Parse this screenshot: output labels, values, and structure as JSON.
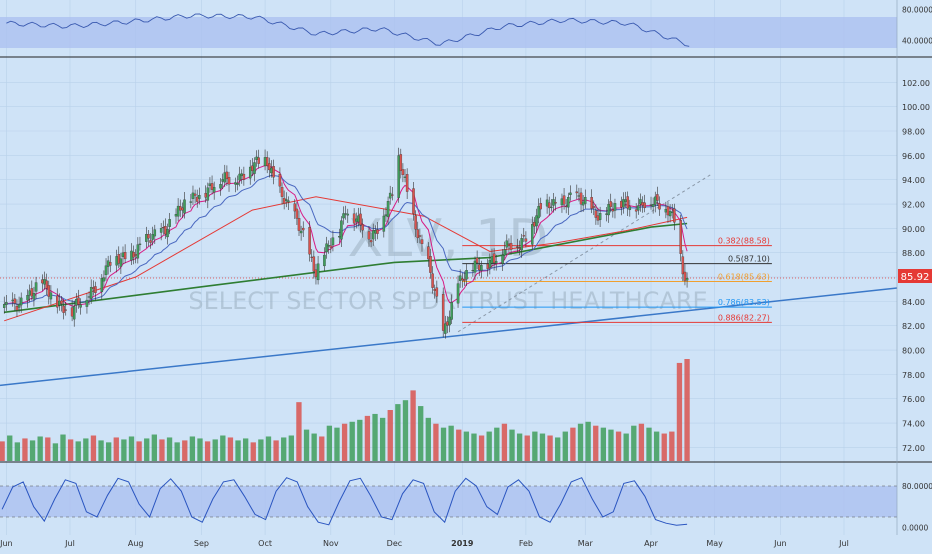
{
  "watermark": {
    "symbol": "XLV, 1D",
    "name": "SELECT SECTOR SPDR TRUST HEALTHCARE"
  },
  "colors": {
    "background": "#cfe3f7",
    "up": "#3f9e5c",
    "down": "#d9534f",
    "sma_long": "#2e7d32",
    "sma_mid": "#e53935",
    "ema_fast": "#d81b84",
    "ema_slow": "#4a68c0",
    "trend": "#3a78c8",
    "price_line": "#e53935"
  },
  "last_price": "85.92",
  "chart_data": [
    {
      "type": "line",
      "panel": "rsi",
      "y_ticks": [
        "80.0000",
        "40.0000"
      ],
      "band": [
        30,
        70
      ],
      "x": [
        "2018-06-01",
        "2018-07-01",
        "2018-08-01",
        "2018-09-01",
        "2018-10-01",
        "2018-11-01",
        "2018-12-01",
        "2019-01-02",
        "2019-02-01",
        "2019-03-01",
        "2019-04-01",
        "2019-04-19"
      ],
      "series": [
        {
          "values": [
            62,
            58,
            64,
            72,
            70,
            48,
            55,
            35,
            58,
            66,
            62,
            34
          ]
        }
      ]
    },
    {
      "type": "candlestick",
      "panel": "price",
      "x_ticks": [
        "Jun",
        "Jul",
        "Aug",
        "Sep",
        "Oct",
        "Nov",
        "Dec",
        "2019",
        "Feb",
        "Mar",
        "Apr",
        "May",
        "Jun",
        "Jul"
      ],
      "y_ticks": [
        "102.00",
        "100.00",
        "98.00",
        "96.00",
        "94.00",
        "92.00",
        "90.00",
        "88.00",
        "86.00",
        "84.00",
        "82.00",
        "80.00",
        "78.00",
        "76.00",
        "74.00",
        "72.00"
      ],
      "ylim": [
        70.8,
        104.0
      ],
      "x_range": [
        "2018-05-29",
        "2019-07-26"
      ],
      "ohlc_path": [
        [
          "2018-05-31",
          83.2
        ],
        [
          "2018-06-18",
          85.3
        ],
        [
          "2018-07-02",
          83.0
        ],
        [
          "2018-07-20",
          87.0
        ],
        [
          "2018-08-08",
          89.0
        ],
        [
          "2018-08-31",
          93.0
        ],
        [
          "2018-09-20",
          94.5
        ],
        [
          "2018-10-02",
          95.6
        ],
        [
          "2018-10-11",
          92.0
        ],
        [
          "2018-10-19",
          89.5
        ],
        [
          "2018-10-25",
          86.5
        ],
        [
          "2018-11-05",
          89.8
        ],
        [
          "2018-11-08",
          91.9
        ],
        [
          "2018-11-20",
          89.0
        ],
        [
          "2018-11-30",
          93.0
        ],
        [
          "2018-12-03",
          95.5
        ],
        [
          "2018-12-10",
          91.0
        ],
        [
          "2018-12-17",
          87.0
        ],
        [
          "2018-12-24",
          81.2
        ],
        [
          "2018-12-31",
          85.7
        ],
        [
          "2019-01-15",
          87.5
        ],
        [
          "2019-01-29",
          88.8
        ],
        [
          "2019-02-08",
          91.5
        ],
        [
          "2019-02-22",
          92.6
        ],
        [
          "2019-03-08",
          91.2
        ],
        [
          "2019-03-22",
          92.2
        ],
        [
          "2019-04-09",
          91.8
        ],
        [
          "2019-04-12",
          91.0
        ],
        [
          "2019-04-16",
          86.5
        ],
        [
          "2019-04-17",
          85.6
        ],
        [
          "2019-04-18",
          85.9
        ]
      ],
      "sma_long": [
        [
          "2018-05-31",
          83.1
        ],
        [
          "2018-09-01",
          85.2
        ],
        [
          "2018-12-01",
          87.2
        ],
        [
          "2019-01-15",
          87.6
        ],
        [
          "2019-04-01",
          90.1
        ],
        [
          "2019-04-18",
          90.4
        ]
      ],
      "sma_mid": [
        [
          "2018-05-31",
          82.4
        ],
        [
          "2018-08-01",
          86.0
        ],
        [
          "2018-09-25",
          91.5
        ],
        [
          "2018-10-25",
          92.6
        ],
        [
          "2018-12-15",
          91.0
        ],
        [
          "2019-01-15",
          88.1
        ],
        [
          "2019-02-15",
          88.8
        ],
        [
          "2019-03-20",
          89.8
        ],
        [
          "2019-04-18",
          90.9
        ]
      ],
      "fib_levels": [
        {
          "label": "0.382(88.58)",
          "value": 88.58,
          "color": "#e53935"
        },
        {
          "label": "0.5(87.10)",
          "value": 87.1,
          "color": "#333333"
        },
        {
          "label": "0.618(85.63)",
          "value": 85.63,
          "color": "#f0a030"
        },
        {
          "label": "0.786(83.53)",
          "value": 83.53,
          "color": "#2196f3"
        },
        {
          "label": "0.886(82.27)",
          "value": 82.27,
          "color": "#e53935"
        }
      ],
      "fib_from_date": "2019-01-02",
      "fib_to_date": "2019-05-28",
      "trendline": {
        "from": [
          "2018-05-29",
          77.1
        ],
        "to": [
          "2019-07-26",
          85.1
        ]
      },
      "dashed_line": {
        "from": [
          "2018-12-31",
          81.5
        ],
        "to": [
          "2019-04-29",
          94.4
        ]
      },
      "last_price_value": 85.92
    },
    {
      "type": "bar",
      "panel": "volume",
      "values": [
        20,
        26,
        19,
        23,
        21,
        25,
        24,
        18,
        27,
        22,
        20,
        23,
        26,
        21,
        19,
        24,
        22,
        25,
        20,
        23,
        27,
        22,
        24,
        19,
        21,
        25,
        23,
        20,
        22,
        26,
        24,
        21,
        23,
        19,
        22,
        25,
        21,
        24,
        26,
        60,
        32,
        28,
        25,
        36,
        34,
        38,
        40,
        42,
        46,
        48,
        44,
        52,
        58,
        62,
        72,
        56,
        44,
        38,
        34,
        36,
        32,
        30,
        28,
        26,
        30,
        34,
        38,
        32,
        28,
        26,
        30,
        28,
        26,
        24,
        30,
        34,
        38,
        40,
        36,
        34,
        32,
        30,
        28,
        36,
        38,
        34,
        30,
        28,
        30,
        100,
        104
      ]
    },
    {
      "type": "line",
      "panel": "stochastic",
      "y_ticks": [
        "80.0000",
        "0.0000"
      ],
      "band": [
        20,
        80
      ],
      "series": [
        {
          "values": [
            35,
            78,
            88,
            40,
            12,
            55,
            92,
            85,
            30,
            20,
            62,
            95,
            88,
            45,
            20,
            75,
            94,
            70,
            20,
            10,
            55,
            88,
            92,
            60,
            25,
            15,
            70,
            96,
            88,
            40,
            10,
            5,
            50,
            90,
            95,
            60,
            20,
            15,
            65,
            92,
            85,
            30,
            10,
            70,
            95,
            80,
            40,
            25,
            78,
            92,
            70,
            20,
            10,
            45,
            88,
            96,
            55,
            20,
            30,
            85,
            90,
            60,
            15,
            8,
            4,
            6
          ]
        }
      ]
    }
  ]
}
